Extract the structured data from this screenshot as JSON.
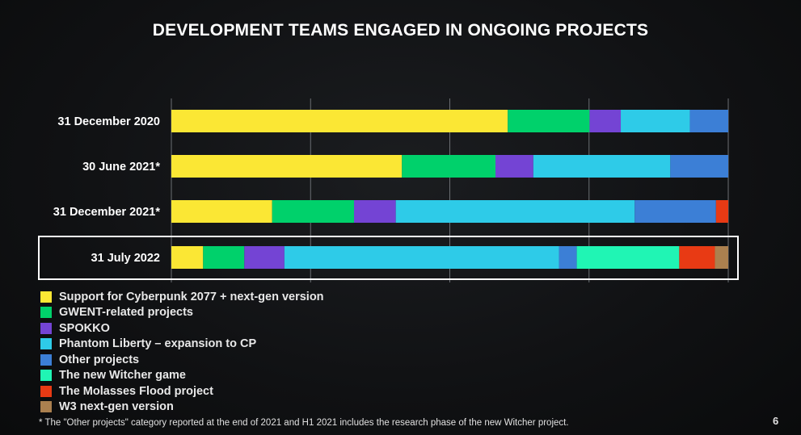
{
  "slide": {
    "title": "DEVELOPMENT TEAMS ENGAGED IN ONGOING PROJECTS",
    "footnote": "* The \"Other projects\" category reported at the end of 2021 and H1 2021 includes the research phase of the new Witcher project.",
    "page_number": "6",
    "highlighted_category": "31 July 2022"
  },
  "chart_data": {
    "type": "bar",
    "orientation": "horizontal",
    "stacked": true,
    "normalized_percent": true,
    "title": "DEVELOPMENT TEAMS ENGAGED IN ONGOING PROJECTS",
    "categories": [
      "31 December 2020",
      "30 June 2021*",
      "31 December 2021*",
      "31 July 2022"
    ],
    "xlim": [
      0,
      100
    ],
    "grid": true,
    "legend_position": "bottom-left",
    "series": [
      {
        "name": "Support for Cyberpunk 2077 + next-gen version",
        "color": "#fbe734",
        "values": [
          60.4,
          41.4,
          18.1,
          5.7
        ]
      },
      {
        "name": "GWENT-related projects",
        "color": "#00d16b",
        "values": [
          14.7,
          16.8,
          14.7,
          7.4
        ]
      },
      {
        "name": "SPOKKO",
        "color": "#7444d4",
        "values": [
          5.6,
          6.8,
          7.5,
          7.2
        ]
      },
      {
        "name": "Phantom Liberty – expansion to CP",
        "color": "#2ecbe8",
        "values": [
          12.4,
          24.6,
          42.9,
          49.3
        ]
      },
      {
        "name": "Other projects",
        "color": "#3c7fd6",
        "values": [
          6.9,
          10.4,
          14.6,
          3.2
        ]
      },
      {
        "name": "The new Witcher game",
        "color": "#20f5b4",
        "values": [
          0,
          0,
          0,
          18.4
        ]
      },
      {
        "name": "The Molasses Flood project",
        "color": "#e83a14",
        "values": [
          0,
          0,
          2.2,
          6.4
        ]
      },
      {
        "name": "W3 next-gen version",
        "color": "#ab804f",
        "values": [
          0,
          0,
          0,
          2.4
        ]
      }
    ]
  }
}
